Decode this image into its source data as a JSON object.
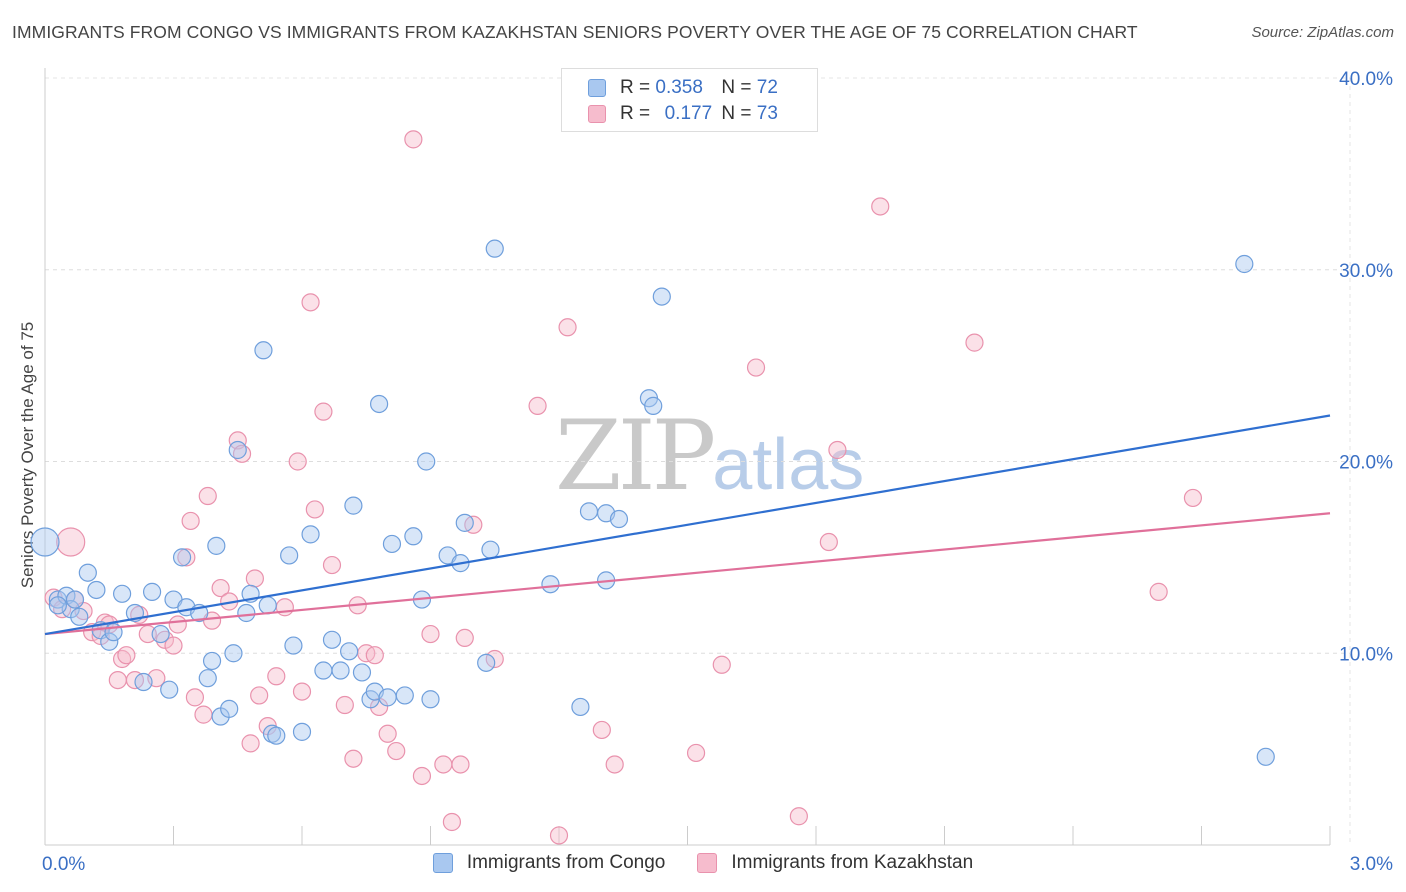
{
  "title": "IMMIGRANTS FROM CONGO VS IMMIGRANTS FROM KAZAKHSTAN SENIORS POVERTY OVER THE AGE OF 75 CORRELATION CHART",
  "source": "Source: ZipAtlas.com",
  "watermark": {
    "zip": "ZIP",
    "atlas": "atlas"
  },
  "legend": {
    "rows": [
      {
        "r_label": "R =",
        "r_value": "0.358",
        "n_label": "N =",
        "n_value": "72"
      },
      {
        "r_label": "R =",
        "r_value": "0.177",
        "n_label": "N =",
        "n_value": "73"
      }
    ]
  },
  "colors": {
    "congo_fill": "#a9c8f0",
    "congo_stroke": "#6f9fdc",
    "congo_line": "#2f6fd0",
    "kaz_fill": "#f6bccd",
    "kaz_stroke": "#e992ad",
    "kaz_line": "#e0709a",
    "tick_label": "#3a6fc4"
  },
  "chart_data": {
    "type": "scatter",
    "title": "IMMIGRANTS FROM CONGO VS IMMIGRANTS FROM KAZAKHSTAN SENIORS POVERTY OVER THE AGE OF 75 CORRELATION CHART",
    "xlabel": "",
    "ylabel": "Seniors Poverty Over the Age of 75",
    "xlim": [
      0,
      3.0
    ],
    "ylim": [
      0,
      40
    ],
    "x_tick_labels": [
      "0.0%",
      "3.0%"
    ],
    "y_ticks": [
      10,
      20,
      30,
      40
    ],
    "y_tick_labels": [
      "10.0%",
      "20.0%",
      "30.0%",
      "40.0%"
    ],
    "grid": true,
    "legend_position": "top-center",
    "series": [
      {
        "name": "Immigrants from Congo",
        "r": 0.358,
        "n": 72,
        "trend": {
          "x": [
            0,
            3.0
          ],
          "y": [
            11.0,
            22.4
          ]
        },
        "points": [
          [
            0.0,
            15.8
          ],
          [
            0.03,
            12.8
          ],
          [
            0.05,
            13.0
          ],
          [
            0.06,
            12.3
          ],
          [
            0.1,
            14.2
          ],
          [
            0.12,
            13.3
          ],
          [
            0.13,
            11.2
          ],
          [
            0.15,
            10.6
          ],
          [
            0.16,
            11.1
          ],
          [
            0.18,
            13.1
          ],
          [
            0.21,
            12.1
          ],
          [
            0.23,
            8.5
          ],
          [
            0.25,
            13.2
          ],
          [
            0.27,
            11.0
          ],
          [
            0.29,
            8.1
          ],
          [
            0.3,
            12.8
          ],
          [
            0.32,
            15.0
          ],
          [
            0.33,
            12.4
          ],
          [
            0.36,
            12.1
          ],
          [
            0.38,
            8.7
          ],
          [
            0.39,
            9.6
          ],
          [
            0.4,
            15.6
          ],
          [
            0.41,
            6.7
          ],
          [
            0.43,
            7.1
          ],
          [
            0.44,
            10.0
          ],
          [
            0.45,
            20.6
          ],
          [
            0.47,
            12.1
          ],
          [
            0.48,
            13.1
          ],
          [
            0.51,
            25.8
          ],
          [
            0.52,
            12.5
          ],
          [
            0.53,
            5.8
          ],
          [
            0.54,
            5.7
          ],
          [
            0.57,
            15.1
          ],
          [
            0.58,
            10.4
          ],
          [
            0.6,
            5.9
          ],
          [
            0.62,
            16.2
          ],
          [
            0.65,
            9.1
          ],
          [
            0.67,
            10.7
          ],
          [
            0.69,
            9.1
          ],
          [
            0.71,
            10.1
          ],
          [
            0.72,
            17.7
          ],
          [
            0.74,
            9.0
          ],
          [
            0.76,
            7.6
          ],
          [
            0.77,
            8.0
          ],
          [
            0.78,
            23.0
          ],
          [
            0.8,
            7.7
          ],
          [
            0.81,
            15.7
          ],
          [
            0.84,
            7.8
          ],
          [
            0.86,
            16.1
          ],
          [
            0.88,
            12.8
          ],
          [
            0.89,
            20.0
          ],
          [
            0.9,
            7.6
          ],
          [
            0.94,
            15.1
          ],
          [
            0.97,
            14.7
          ],
          [
            0.98,
            16.8
          ],
          [
            1.03,
            9.5
          ],
          [
            1.04,
            15.4
          ],
          [
            1.05,
            31.1
          ],
          [
            1.18,
            13.6
          ],
          [
            1.25,
            7.2
          ],
          [
            1.27,
            17.4
          ],
          [
            1.31,
            13.8
          ],
          [
            1.31,
            17.3
          ],
          [
            1.34,
            17.0
          ],
          [
            1.41,
            23.3
          ],
          [
            1.42,
            22.9
          ],
          [
            1.44,
            28.6
          ],
          [
            2.8,
            30.3
          ],
          [
            2.85,
            4.6
          ],
          [
            0.08,
            11.9
          ],
          [
            0.03,
            12.5
          ],
          [
            0.07,
            12.8
          ]
        ]
      },
      {
        "name": "Immigrants from Kazakhstan",
        "r": 0.177,
        "n": 73,
        "trend": {
          "x": [
            0,
            3.0
          ],
          "y": [
            11.0,
            17.3
          ]
        },
        "points": [
          [
            0.02,
            12.9
          ],
          [
            0.04,
            12.3
          ],
          [
            0.06,
            15.8
          ],
          [
            0.07,
            12.8
          ],
          [
            0.09,
            12.2
          ],
          [
            0.11,
            11.1
          ],
          [
            0.13,
            10.9
          ],
          [
            0.14,
            11.6
          ],
          [
            0.15,
            11.5
          ],
          [
            0.17,
            8.6
          ],
          [
            0.18,
            9.7
          ],
          [
            0.19,
            9.9
          ],
          [
            0.21,
            8.6
          ],
          [
            0.22,
            12.0
          ],
          [
            0.24,
            11.0
          ],
          [
            0.26,
            8.7
          ],
          [
            0.28,
            10.7
          ],
          [
            0.3,
            10.4
          ],
          [
            0.31,
            11.5
          ],
          [
            0.33,
            15.0
          ],
          [
            0.34,
            16.9
          ],
          [
            0.35,
            7.7
          ],
          [
            0.37,
            6.8
          ],
          [
            0.38,
            18.2
          ],
          [
            0.39,
            11.7
          ],
          [
            0.41,
            13.4
          ],
          [
            0.43,
            12.7
          ],
          [
            0.45,
            21.1
          ],
          [
            0.46,
            20.4
          ],
          [
            0.48,
            5.3
          ],
          [
            0.49,
            13.9
          ],
          [
            0.5,
            7.8
          ],
          [
            0.52,
            6.2
          ],
          [
            0.54,
            8.8
          ],
          [
            0.56,
            12.4
          ],
          [
            0.59,
            20.0
          ],
          [
            0.6,
            8.0
          ],
          [
            0.62,
            28.3
          ],
          [
            0.63,
            17.5
          ],
          [
            0.65,
            22.6
          ],
          [
            0.67,
            14.6
          ],
          [
            0.7,
            7.3
          ],
          [
            0.72,
            4.5
          ],
          [
            0.73,
            12.5
          ],
          [
            0.75,
            10.0
          ],
          [
            0.77,
            9.9
          ],
          [
            0.78,
            7.2
          ],
          [
            0.8,
            5.8
          ],
          [
            0.82,
            4.9
          ],
          [
            0.86,
            36.8
          ],
          [
            0.88,
            3.6
          ],
          [
            0.9,
            11.0
          ],
          [
            0.93,
            4.2
          ],
          [
            0.95,
            1.2
          ],
          [
            0.97,
            4.2
          ],
          [
            0.98,
            10.8
          ],
          [
            1.0,
            16.7
          ],
          [
            1.05,
            9.7
          ],
          [
            1.15,
            22.9
          ],
          [
            1.2,
            0.5
          ],
          [
            1.22,
            27.0
          ],
          [
            1.3,
            6.0
          ],
          [
            1.33,
            4.2
          ],
          [
            1.52,
            4.8
          ],
          [
            1.58,
            9.4
          ],
          [
            1.66,
            24.9
          ],
          [
            1.76,
            1.5
          ],
          [
            1.83,
            15.8
          ],
          [
            1.85,
            20.6
          ],
          [
            1.95,
            33.3
          ],
          [
            2.17,
            26.2
          ],
          [
            2.6,
            13.2
          ],
          [
            2.68,
            18.1
          ]
        ]
      }
    ]
  }
}
